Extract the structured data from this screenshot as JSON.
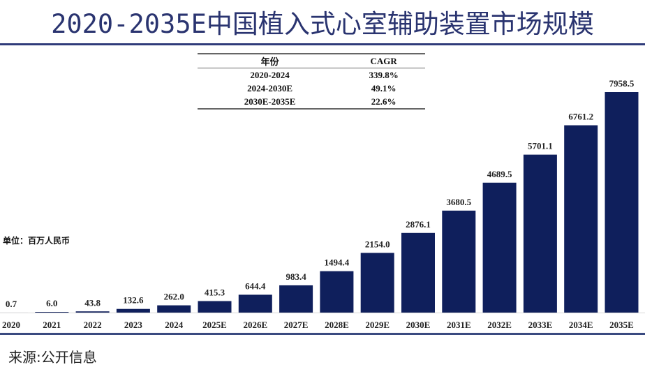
{
  "title": "2020-2035E中国植入式心室辅助装置市场规模",
  "unit_label": "单位：百万人民币",
  "source": "来源:公开信息",
  "cagr_table": {
    "headers": [
      "年份",
      "CAGR"
    ],
    "rows": [
      [
        "2020-2024",
        "339.8%"
      ],
      [
        "2024-2030E",
        "49.1%"
      ],
      [
        "2030E-2035E",
        "22.6%"
      ]
    ]
  },
  "chart_data": {
    "type": "bar",
    "title": "2020-2035E中国植入式心室辅助装置市场规模",
    "xlabel": "",
    "ylabel": "百万人民币",
    "categories": [
      "2020",
      "2021",
      "2022",
      "2023",
      "2024",
      "2025E",
      "2026E",
      "2027E",
      "2028E",
      "2029E",
      "2030E",
      "2031E",
      "2032E",
      "2033E",
      "2034E",
      "2035E"
    ],
    "values": [
      0.7,
      6.0,
      43.8,
      132.6,
      262.0,
      415.3,
      644.4,
      983.4,
      1494.4,
      2154.0,
      2876.1,
      3680.5,
      4689.5,
      5701.1,
      6761.2,
      7958.5
    ],
    "value_labels": [
      "0.7",
      "6.0",
      "43.8",
      "132.6",
      "262.0",
      "415.3",
      "644.4",
      "983.4",
      "1494.4",
      "2154.0",
      "2876.1",
      "3680.5",
      "4689.5",
      "5701.1",
      "6761.2",
      "7958.5"
    ],
    "ylim": [
      0,
      7958.5
    ],
    "grid": false,
    "bar_color": "#0f1f5c"
  }
}
